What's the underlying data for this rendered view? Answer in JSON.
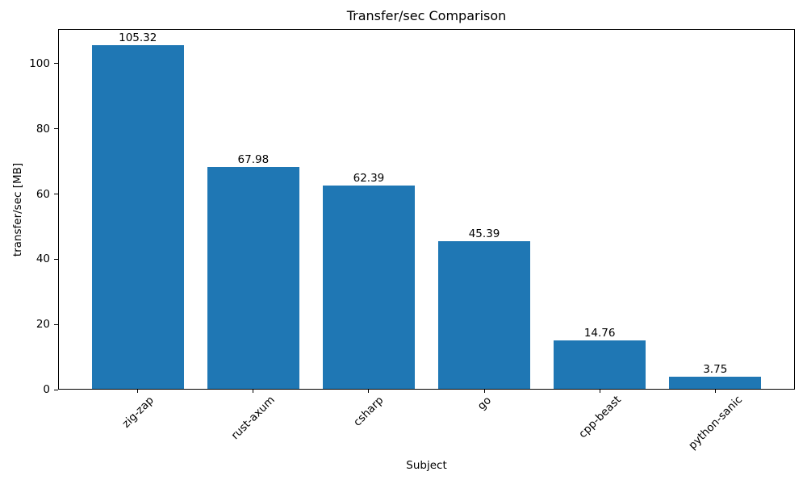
{
  "chart_data": {
    "type": "bar",
    "title": "Transfer/sec Comparison",
    "xlabel": "Subject",
    "ylabel": "transfer/sec [MB]",
    "categories": [
      "zig-zap",
      "rust-axum",
      "csharp",
      "go",
      "cpp-beast",
      "python-sanic"
    ],
    "values": [
      105.32,
      67.98,
      62.39,
      45.39,
      14.76,
      3.75
    ],
    "value_labels": [
      "105.32",
      "67.98",
      "62.39",
      "45.39",
      "14.76",
      "3.75"
    ],
    "yticks": [
      0,
      20,
      40,
      60,
      80,
      100
    ],
    "ylim": [
      0,
      110.6
    ],
    "bar_color": "#1f77b4",
    "text_color": "#000000",
    "grid": false,
    "legend": false,
    "bar_width_fraction": 0.8,
    "x_tick_rotation_deg": 45
  }
}
